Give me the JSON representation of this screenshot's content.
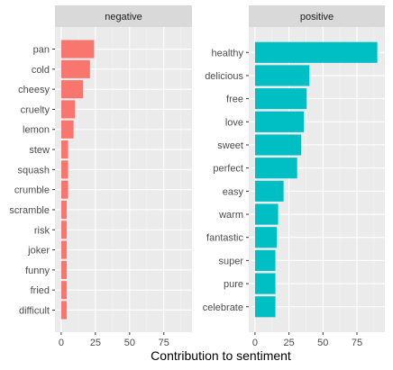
{
  "chart_data": {
    "type": "bar",
    "orientation": "horizontal",
    "xlabel": "Contribution to sentiment",
    "xlim": [
      0,
      91
    ],
    "xticks": [
      0,
      25,
      50,
      75
    ],
    "grid": true,
    "facet_scales": "free_y",
    "panels": [
      {
        "name": "negative",
        "color": "#F8766D",
        "categories": [
          "pan",
          "cold",
          "cheesy",
          "cruelty",
          "lemon",
          "stew",
          "squash",
          "crumble",
          "scramble",
          "risk",
          "joker",
          "funny",
          "fried",
          "difficult"
        ],
        "values": [
          24,
          21,
          16,
          10,
          9,
          5,
          5,
          5,
          4,
          4,
          4,
          4,
          4,
          4
        ]
      },
      {
        "name": "positive",
        "color": "#00BFC4",
        "categories": [
          "healthy",
          "delicious",
          "free",
          "love",
          "sweet",
          "perfect",
          "easy",
          "warm",
          "fantastic",
          "super",
          "pure",
          "celebrate"
        ],
        "values": [
          90,
          40,
          38,
          36,
          34,
          31,
          21,
          17,
          16,
          15,
          15,
          15
        ]
      }
    ]
  }
}
